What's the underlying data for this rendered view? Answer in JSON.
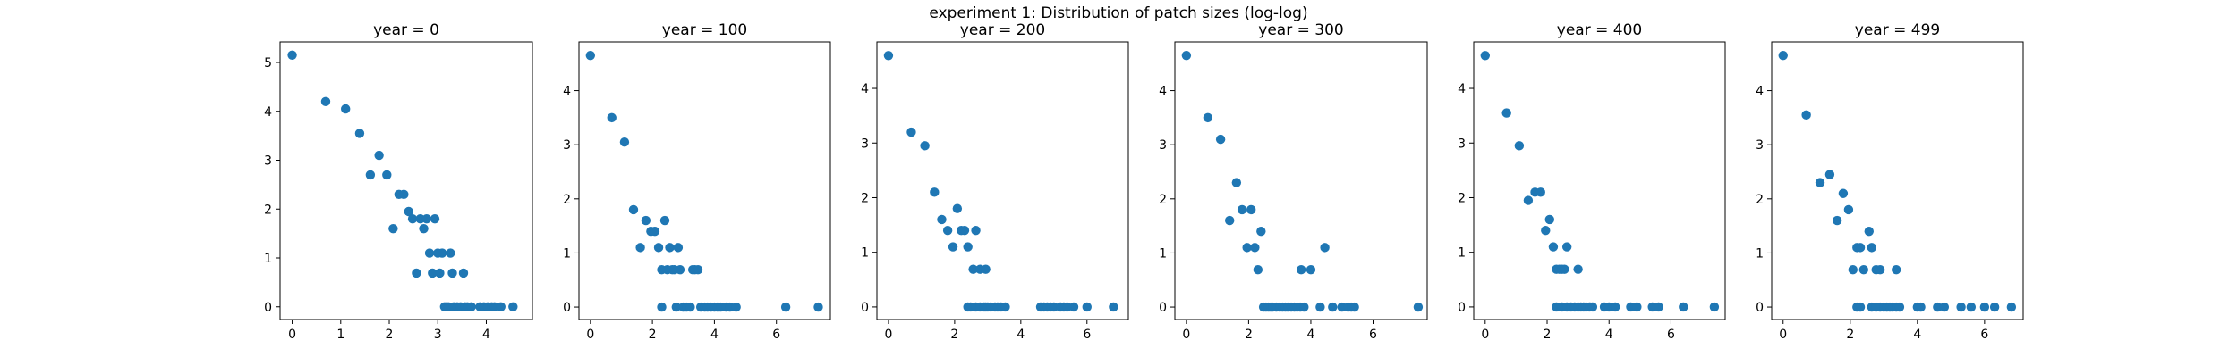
{
  "figure": {
    "suptitle": "experiment 1: Distribution of patch sizes (log-log)"
  },
  "chart_data": [
    {
      "type": "scatter",
      "title": "year = 0",
      "xlabel": "",
      "ylabel": "",
      "xlim": [
        -0.25,
        4.95
      ],
      "ylim": [
        -0.26,
        5.42
      ],
      "xticks": [
        0,
        1,
        2,
        3,
        4
      ],
      "yticks": [
        0,
        1,
        2,
        3,
        4,
        5
      ],
      "color": "#1f77b4",
      "points": [
        [
          0,
          5.15
        ],
        [
          0.69,
          4.2
        ],
        [
          1.1,
          4.05
        ],
        [
          1.39,
          3.55
        ],
        [
          1.61,
          2.7
        ],
        [
          1.79,
          3.1
        ],
        [
          1.95,
          2.7
        ],
        [
          2.08,
          1.6
        ],
        [
          2.2,
          2.3
        ],
        [
          2.3,
          2.3
        ],
        [
          2.4,
          1.95
        ],
        [
          2.48,
          1.8
        ],
        [
          2.56,
          0.69
        ],
        [
          2.64,
          1.8
        ],
        [
          2.71,
          1.6
        ],
        [
          2.77,
          1.8
        ],
        [
          2.83,
          1.1
        ],
        [
          2.89,
          0.69
        ],
        [
          2.94,
          1.8
        ],
        [
          3.0,
          1.1
        ],
        [
          3.04,
          0.69
        ],
        [
          3.09,
          1.1
        ],
        [
          3.14,
          0
        ],
        [
          3.18,
          0
        ],
        [
          3.22,
          0
        ],
        [
          3.26,
          1.1
        ],
        [
          3.3,
          0.69
        ],
        [
          3.33,
          0
        ],
        [
          3.4,
          0
        ],
        [
          3.47,
          0
        ],
        [
          3.53,
          0.69
        ],
        [
          3.56,
          0
        ],
        [
          3.61,
          0
        ],
        [
          3.69,
          0
        ],
        [
          3.87,
          0
        ],
        [
          3.95,
          0
        ],
        [
          4.03,
          0
        ],
        [
          4.11,
          0
        ],
        [
          4.17,
          0
        ],
        [
          4.3,
          0
        ],
        [
          4.55,
          0
        ]
      ]
    },
    {
      "type": "scatter",
      "title": "year = 100",
      "xlabel": "",
      "ylabel": "",
      "xlim": [
        -0.37,
        7.74
      ],
      "ylim": [
        -0.23,
        4.9
      ],
      "xticks": [
        0,
        2,
        4,
        6
      ],
      "yticks": [
        0,
        1,
        2,
        3,
        4
      ],
      "color": "#1f77b4",
      "points": [
        [
          0,
          4.65
        ],
        [
          0.69,
          3.5
        ],
        [
          1.1,
          3.05
        ],
        [
          1.39,
          1.8
        ],
        [
          1.61,
          1.1
        ],
        [
          1.79,
          1.6
        ],
        [
          1.95,
          1.4
        ],
        [
          2.08,
          1.4
        ],
        [
          2.2,
          1.1
        ],
        [
          2.3,
          0.69
        ],
        [
          2.4,
          1.6
        ],
        [
          2.48,
          0.69
        ],
        [
          2.56,
          1.1
        ],
        [
          2.64,
          0.69
        ],
        [
          2.71,
          0.69
        ],
        [
          2.83,
          1.1
        ],
        [
          2.89,
          0.69
        ],
        [
          2.3,
          0
        ],
        [
          2.77,
          0
        ],
        [
          3.0,
          0
        ],
        [
          3.1,
          0
        ],
        [
          3.22,
          0
        ],
        [
          3.3,
          0.69
        ],
        [
          3.37,
          0.69
        ],
        [
          3.47,
          0.69
        ],
        [
          3.56,
          0
        ],
        [
          3.69,
          0
        ],
        [
          3.78,
          0
        ],
        [
          3.89,
          0
        ],
        [
          4.0,
          0
        ],
        [
          4.1,
          0
        ],
        [
          4.2,
          0
        ],
        [
          4.38,
          0
        ],
        [
          4.5,
          0
        ],
        [
          4.7,
          0
        ],
        [
          6.3,
          0
        ],
        [
          7.35,
          0
        ]
      ]
    },
    {
      "type": "scatter",
      "title": "year = 200",
      "xlabel": "",
      "ylabel": "",
      "xlim": [
        -0.35,
        7.25
      ],
      "ylim": [
        -0.23,
        4.85
      ],
      "xticks": [
        0,
        2,
        4,
        6
      ],
      "yticks": [
        0,
        1,
        2,
        3,
        4
      ],
      "color": "#1f77b4",
      "points": [
        [
          0,
          4.6
        ],
        [
          0.69,
          3.2
        ],
        [
          1.1,
          2.95
        ],
        [
          1.39,
          2.1
        ],
        [
          1.61,
          1.6
        ],
        [
          1.79,
          1.4
        ],
        [
          1.95,
          1.1
        ],
        [
          2.08,
          1.8
        ],
        [
          2.2,
          1.4
        ],
        [
          2.3,
          1.4
        ],
        [
          2.4,
          1.1
        ],
        [
          2.56,
          0.69
        ],
        [
          2.64,
          1.4
        ],
        [
          2.77,
          0.69
        ],
        [
          2.94,
          0.69
        ],
        [
          2.4,
          0
        ],
        [
          2.48,
          0
        ],
        [
          2.64,
          0
        ],
        [
          2.77,
          0
        ],
        [
          2.89,
          0
        ],
        [
          2.94,
          0
        ],
        [
          3.0,
          0
        ],
        [
          3.09,
          0
        ],
        [
          3.22,
          0
        ],
        [
          3.3,
          0
        ],
        [
          3.4,
          0
        ],
        [
          3.53,
          0
        ],
        [
          4.6,
          0
        ],
        [
          4.7,
          0
        ],
        [
          4.8,
          0
        ],
        [
          4.9,
          0
        ],
        [
          5.0,
          0
        ],
        [
          5.2,
          0
        ],
        [
          5.3,
          0
        ],
        [
          5.4,
          0
        ],
        [
          5.6,
          0
        ],
        [
          6.0,
          0
        ],
        [
          6.8,
          0
        ]
      ]
    },
    {
      "type": "scatter",
      "title": "year = 300",
      "xlabel": "",
      "ylabel": "",
      "xlim": [
        -0.37,
        7.74
      ],
      "ylim": [
        -0.23,
        4.9
      ],
      "xticks": [
        0,
        2,
        4,
        6
      ],
      "yticks": [
        0,
        1,
        2,
        3,
        4
      ],
      "color": "#1f77b4",
      "points": [
        [
          0,
          4.65
        ],
        [
          0.69,
          3.5
        ],
        [
          1.1,
          3.1
        ],
        [
          1.39,
          1.6
        ],
        [
          1.61,
          2.3
        ],
        [
          1.79,
          1.8
        ],
        [
          1.95,
          1.1
        ],
        [
          2.08,
          1.8
        ],
        [
          2.2,
          1.1
        ],
        [
          2.3,
          0.69
        ],
        [
          2.4,
          1.4
        ],
        [
          2.48,
          0
        ],
        [
          2.56,
          0
        ],
        [
          2.64,
          0
        ],
        [
          2.71,
          0
        ],
        [
          2.77,
          0
        ],
        [
          2.89,
          0
        ],
        [
          3.0,
          0
        ],
        [
          3.09,
          0
        ],
        [
          3.18,
          0
        ],
        [
          3.26,
          0
        ],
        [
          3.37,
          0
        ],
        [
          3.47,
          0
        ],
        [
          3.56,
          0
        ],
        [
          3.66,
          0
        ],
        [
          3.78,
          0
        ],
        [
          3.69,
          0.69
        ],
        [
          4.0,
          0.69
        ],
        [
          4.3,
          0
        ],
        [
          4.45,
          1.1
        ],
        [
          4.7,
          0
        ],
        [
          5.0,
          0
        ],
        [
          5.2,
          0
        ],
        [
          5.3,
          0
        ],
        [
          5.4,
          0
        ],
        [
          7.45,
          0
        ]
      ]
    },
    {
      "type": "scatter",
      "title": "year = 400",
      "xlabel": "",
      "ylabel": "",
      "xlim": [
        -0.37,
        7.75
      ],
      "ylim": [
        -0.23,
        4.85
      ],
      "xticks": [
        0,
        2,
        4,
        6
      ],
      "yticks": [
        0,
        1,
        2,
        3,
        4
      ],
      "color": "#1f77b4",
      "points": [
        [
          0,
          4.6
        ],
        [
          0.69,
          3.55
        ],
        [
          1.1,
          2.95
        ],
        [
          1.39,
          1.95
        ],
        [
          1.61,
          2.1
        ],
        [
          1.79,
          2.1
        ],
        [
          1.95,
          1.4
        ],
        [
          2.08,
          1.6
        ],
        [
          2.2,
          1.1
        ],
        [
          2.3,
          0.69
        ],
        [
          2.4,
          0.69
        ],
        [
          2.48,
          0.69
        ],
        [
          2.56,
          0.69
        ],
        [
          2.64,
          1.1
        ],
        [
          2.3,
          0
        ],
        [
          2.48,
          0
        ],
        [
          2.64,
          0
        ],
        [
          2.77,
          0
        ],
        [
          2.89,
          0
        ],
        [
          3.0,
          0
        ],
        [
          3.09,
          0
        ],
        [
          3.18,
          0
        ],
        [
          3.26,
          0
        ],
        [
          3.37,
          0
        ],
        [
          3.47,
          0
        ],
        [
          3.0,
          0.69
        ],
        [
          3.85,
          0
        ],
        [
          4.0,
          0
        ],
        [
          4.2,
          0
        ],
        [
          4.7,
          0
        ],
        [
          4.9,
          0
        ],
        [
          5.4,
          0
        ],
        [
          5.6,
          0
        ],
        [
          6.4,
          0
        ],
        [
          7.4,
          0
        ]
      ]
    },
    {
      "type": "scatter",
      "title": "year = 499",
      "xlabel": "",
      "ylabel": "",
      "xlim": [
        -0.34,
        7.15
      ],
      "ylim": [
        -0.23,
        4.9
      ],
      "xticks": [
        0,
        2,
        4,
        6
      ],
      "yticks": [
        0,
        1,
        2,
        3,
        4
      ],
      "color": "#1f77b4",
      "points": [
        [
          0,
          4.65
        ],
        [
          0.69,
          3.55
        ],
        [
          1.1,
          2.3
        ],
        [
          1.39,
          2.45
        ],
        [
          1.61,
          1.6
        ],
        [
          1.79,
          2.1
        ],
        [
          1.95,
          1.8
        ],
        [
          2.08,
          0.69
        ],
        [
          2.2,
          1.1
        ],
        [
          2.3,
          1.1
        ],
        [
          2.4,
          0.69
        ],
        [
          2.56,
          1.4
        ],
        [
          2.64,
          1.1
        ],
        [
          2.77,
          0.69
        ],
        [
          2.89,
          0.69
        ],
        [
          2.2,
          0
        ],
        [
          2.3,
          0
        ],
        [
          2.64,
          0
        ],
        [
          2.77,
          0
        ],
        [
          2.89,
          0
        ],
        [
          3.0,
          0
        ],
        [
          3.09,
          0
        ],
        [
          3.18,
          0
        ],
        [
          3.26,
          0
        ],
        [
          3.37,
          0
        ],
        [
          3.47,
          0
        ],
        [
          3.37,
          0.69
        ],
        [
          4.0,
          0
        ],
        [
          4.1,
          0
        ],
        [
          4.6,
          0
        ],
        [
          4.8,
          0
        ],
        [
          5.3,
          0
        ],
        [
          5.6,
          0
        ],
        [
          6.0,
          0
        ],
        [
          6.3,
          0
        ],
        [
          6.8,
          0
        ]
      ]
    }
  ]
}
